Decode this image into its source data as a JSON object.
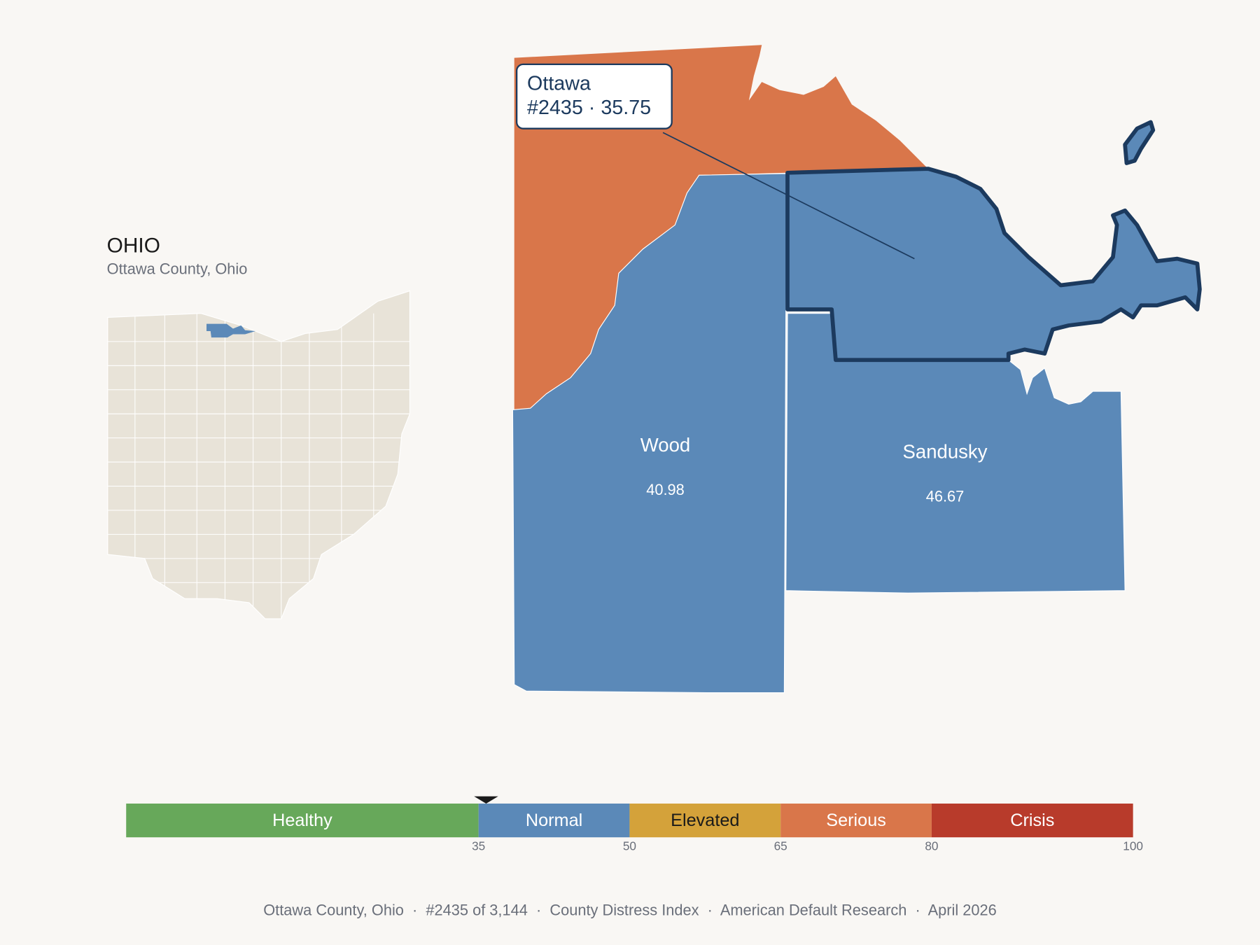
{
  "inset": {
    "title": "OHIO",
    "subtitle": "Ottawa County, Ohio",
    "state_color": "#e8e3d8",
    "highlight_color": "#5b89b8"
  },
  "counties": [
    {
      "color": "#d9764a"
    },
    {
      "name": "Wood",
      "value": 40.98,
      "color": "#5b89b8"
    },
    {
      "name": "Sandusky",
      "value": 46.67,
      "color": "#5b89b8"
    }
  ],
  "selected": {
    "name": "Ottawa",
    "detail": "#2435 · 35.75",
    "score": 35.75,
    "color": "#5b89b8",
    "outline": "#1c3a5e"
  },
  "scale": {
    "xlim": [
      0,
      100
    ],
    "ticks": [
      35,
      50,
      65,
      80,
      100
    ],
    "bands": [
      {
        "label": "Healthy",
        "color": "#67a85a"
      },
      {
        "label": "Normal",
        "color": "#5b89b8"
      },
      {
        "label": "Elevated",
        "color": "#d4a23a"
      },
      {
        "label": "Serious",
        "color": "#d9764a"
      },
      {
        "label": "Crisis",
        "color": "#b83b2b"
      }
    ]
  },
  "footer": "Ottawa County, Ohio  ·  #2435 of 3,144  ·  County Distress Index  ·  American Default Research  ·  April 2026"
}
